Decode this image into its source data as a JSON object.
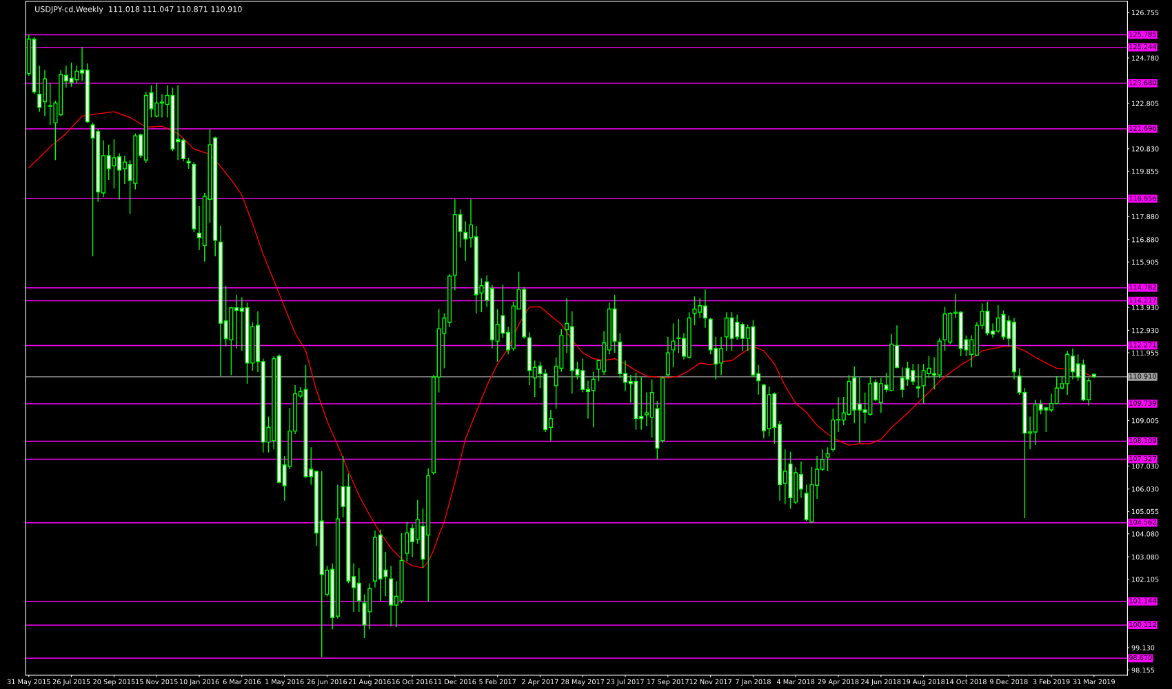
{
  "chart_data": {
    "type": "candlestick",
    "title": "USDJPY-cd,Weekly  111.018 111.047 110.871 110.910",
    "color": "#00ff00",
    "x": [
      "2015-05-31",
      "2015-06-07",
      "2015-06-14",
      "2015-06-21",
      "2015-06-28",
      "2015-07-05",
      "2015-07-12",
      "2015-07-19",
      "2015-07-26",
      "2015-08-02",
      "2015-08-09",
      "2015-08-16",
      "2015-08-23",
      "2015-08-30",
      "2015-09-06",
      "2015-09-13",
      "2015-09-20",
      "2015-09-27",
      "2015-10-04",
      "2015-10-11",
      "2015-10-18",
      "2015-10-25",
      "2015-11-01",
      "2015-11-08",
      "2015-11-15",
      "2015-11-22",
      "2015-11-29",
      "2015-12-06",
      "2015-12-13",
      "2015-12-20",
      "2015-12-27",
      "2016-01-03",
      "2016-01-10",
      "2016-01-17",
      "2016-01-24",
      "2016-01-31",
      "2016-02-07",
      "2016-02-14",
      "2016-02-21",
      "2016-02-28",
      "2016-03-06",
      "2016-03-13",
      "2016-03-20",
      "2016-03-27",
      "2016-04-03",
      "2016-04-10",
      "2016-04-17",
      "2016-04-24",
      "2016-05-01",
      "2016-05-08",
      "2016-05-15",
      "2016-05-22",
      "2016-05-29",
      "2016-06-05",
      "2016-06-12",
      "2016-06-19",
      "2016-06-26",
      "2016-07-03",
      "2016-07-10",
      "2016-07-17",
      "2016-07-24",
      "2016-07-31",
      "2016-08-07",
      "2016-08-14",
      "2016-08-21",
      "2016-08-28",
      "2016-09-04",
      "2016-09-11",
      "2016-09-18",
      "2016-09-25",
      "2016-10-02",
      "2016-10-09",
      "2016-10-16",
      "2016-10-23",
      "2016-10-30",
      "2016-11-06",
      "2016-11-13",
      "2016-11-20",
      "2016-11-27",
      "2016-12-04",
      "2016-12-11",
      "2016-12-18",
      "2016-12-25",
      "2017-01-01",
      "2017-01-08",
      "2017-01-15",
      "2017-01-22",
      "2017-01-29",
      "2017-02-05",
      "2017-02-12",
      "2017-02-19",
      "2017-02-26",
      "2017-03-05",
      "2017-03-12",
      "2017-03-19",
      "2017-03-26",
      "2017-04-02",
      "2017-04-09",
      "2017-04-16",
      "2017-04-23",
      "2017-04-30",
      "2017-05-07",
      "2017-05-14",
      "2017-05-21",
      "2017-05-28",
      "2017-06-04",
      "2017-06-11",
      "2017-06-18",
      "2017-06-25",
      "2017-07-02",
      "2017-07-09",
      "2017-07-16",
      "2017-07-23",
      "2017-07-30",
      "2017-08-06",
      "2017-08-13",
      "2017-08-20",
      "2017-08-27",
      "2017-09-03",
      "2017-09-10",
      "2017-09-17",
      "2017-09-24",
      "2017-10-01",
      "2017-10-08",
      "2017-10-15",
      "2017-10-22",
      "2017-10-29",
      "2017-11-05",
      "2017-11-12",
      "2017-11-19",
      "2017-11-26",
      "2017-12-03",
      "2017-12-10",
      "2017-12-17",
      "2017-12-24",
      "2017-12-31",
      "2018-01-07",
      "2018-01-14",
      "2018-01-21",
      "2018-01-28",
      "2018-02-04",
      "2018-02-11",
      "2018-02-18",
      "2018-02-25",
      "2018-03-04",
      "2018-03-11",
      "2018-03-18",
      "2018-03-25",
      "2018-04-01",
      "2018-04-08",
      "2018-04-15",
      "2018-04-22",
      "2018-04-29",
      "2018-05-06",
      "2018-05-13",
      "2018-05-20",
      "2018-05-27",
      "2018-06-03",
      "2018-06-10",
      "2018-06-17",
      "2018-06-24",
      "2018-07-01",
      "2018-07-08",
      "2018-07-15",
      "2018-07-22",
      "2018-07-29",
      "2018-08-05",
      "2018-08-12",
      "2018-08-19",
      "2018-08-26",
      "2018-09-02",
      "2018-09-09",
      "2018-09-16",
      "2018-09-23",
      "2018-09-30",
      "2018-10-07",
      "2018-10-14",
      "2018-10-21",
      "2018-10-28",
      "2018-11-04",
      "2018-11-11",
      "2018-11-18",
      "2018-11-25",
      "2018-12-02",
      "2018-12-09",
      "2018-12-16",
      "2018-12-23",
      "2018-12-30",
      "2019-01-06",
      "2019-01-13",
      "2019-01-20",
      "2019-01-27",
      "2019-02-03",
      "2019-02-10",
      "2019-02-17",
      "2019-02-24",
      "2019-03-03",
      "2019-03-10",
      "2019-03-17",
      "2019-03-24",
      "2019-03-31"
    ],
    "ohlc": [
      [
        124.1,
        125.8,
        124.0,
        125.6
      ],
      [
        125.59,
        125.68,
        123.2,
        123.3
      ],
      [
        123.2,
        124.44,
        122.44,
        122.63
      ],
      [
        122.88,
        124.25,
        122.25,
        123.87
      ],
      [
        122.7,
        123.68,
        121.87,
        122.68
      ],
      [
        121.96,
        122.92,
        120.34,
        122.82
      ],
      [
        122.31,
        124.25,
        122.25,
        124.06
      ],
      [
        124.02,
        124.44,
        123.49,
        123.78
      ],
      [
        123.9,
        124.58,
        123.53,
        123.72
      ],
      [
        123.83,
        124.44,
        123.68,
        124.2
      ],
      [
        124.25,
        125.25,
        123.78,
        124.12
      ],
      [
        124.25,
        124.54,
        121.96,
        122.0
      ],
      [
        121.87,
        121.96,
        116.15,
        121.3
      ],
      [
        121.58,
        121.68,
        118.53,
        118.95
      ],
      [
        118.91,
        121.2,
        118.72,
        120.53
      ],
      [
        120.53,
        121.01,
        119.48,
        119.96
      ],
      [
        120.09,
        121.24,
        119.1,
        120.44
      ],
      [
        120.48,
        120.63,
        118.63,
        119.9
      ],
      [
        119.96,
        120.53,
        119.3,
        120.25
      ],
      [
        120.15,
        120.34,
        117.99,
        119.45
      ],
      [
        119.33,
        121.49,
        119.06,
        121.39
      ],
      [
        121.43,
        121.49,
        120.44,
        120.53
      ],
      [
        120.34,
        123.3,
        120.21,
        123.15
      ],
      [
        123.26,
        123.59,
        122.19,
        122.57
      ],
      [
        122.25,
        123.68,
        122.19,
        122.82
      ],
      [
        122.82,
        123.2,
        122.19,
        122.86
      ],
      [
        122.76,
        123.59,
        122.19,
        123.15
      ],
      [
        123.15,
        123.49,
        120.72,
        120.82
      ],
      [
        121.24,
        123.59,
        120.34,
        121.14
      ],
      [
        121.2,
        121.3,
        120.28,
        120.4
      ],
      [
        120.28,
        120.44,
        119.96,
        120.21
      ],
      [
        120.15,
        120.25,
        117.19,
        117.35
      ],
      [
        117.16,
        118.34,
        116.43,
        116.97
      ],
      [
        116.62,
        118.91,
        115.92,
        118.76
      ],
      [
        118.63,
        121.68,
        117.61,
        121.01
      ],
      [
        121.3,
        121.35,
        116.15,
        116.85
      ],
      [
        116.77,
        117.48,
        110.94,
        113.24
      ],
      [
        113.34,
        114.87,
        112.23,
        112.57
      ],
      [
        112.52,
        113.95,
        110.99,
        113.91
      ],
      [
        113.91,
        114.48,
        112.14,
        113.8
      ],
      [
        113.89,
        114.37,
        112.04,
        113.76
      ],
      [
        113.91,
        114.14,
        110.61,
        111.51
      ],
      [
        111.51,
        113.28,
        111.18,
        113.09
      ],
      [
        113.15,
        113.76,
        111.12,
        111.57
      ],
      [
        111.57,
        111.7,
        107.62,
        108.07
      ],
      [
        108.07,
        109.18,
        107.62,
        108.71
      ],
      [
        108.13,
        111.81,
        107.75,
        111.7
      ],
      [
        111.81,
        111.89,
        106.28,
        106.32
      ],
      [
        107.08,
        107.46,
        105.52,
        106.17
      ],
      [
        107.02,
        109.56,
        106.89,
        108.55
      ],
      [
        108.55,
        110.55,
        108.42,
        110.17
      ],
      [
        110.07,
        110.46,
        109.98,
        110.27
      ],
      [
        110.36,
        111.43,
        106.51,
        106.57
      ],
      [
        106.89,
        107.84,
        106.22,
        106.57
      ],
      [
        106.8,
        106.8,
        103.55,
        104.12
      ],
      [
        104.64,
        106.8,
        98.72,
        102.31
      ],
      [
        101.45,
        102.69,
        101.36,
        102.5
      ],
      [
        102.54,
        102.79,
        99.92,
        100.44
      ],
      [
        100.5,
        106.22,
        100.4,
        104.73
      ],
      [
        106.13,
        107.46,
        104.79,
        105.27
      ],
      [
        106.13,
        106.7,
        101.93,
        102.03
      ],
      [
        102.22,
        102.79,
        100.69,
        101.74
      ],
      [
        101.93,
        102.6,
        100.69,
        101.17
      ],
      [
        101.07,
        101.45,
        99.55,
        100.12
      ],
      [
        100.69,
        101.93,
        99.93,
        101.7
      ],
      [
        102.03,
        104.22,
        101.74,
        103.93
      ],
      [
        104.03,
        104.26,
        101.17,
        102.12
      ],
      [
        102.5,
        103.3,
        101.36,
        102.22
      ],
      [
        102.12,
        102.69,
        100.06,
        100.98
      ],
      [
        100.98,
        102.03,
        100.03,
        101.36
      ],
      [
        101.17,
        104.12,
        101.07,
        102.92
      ],
      [
        103.23,
        104.6,
        102.88,
        104.12
      ],
      [
        104.32,
        104.51,
        103.07,
        103.74
      ],
      [
        103.84,
        105.56,
        103.65,
        104.7
      ],
      [
        104.41,
        105.18,
        102.6,
        102.98
      ],
      [
        104.03,
        106.93,
        101.13,
        106.61
      ],
      [
        106.74,
        110.99,
        106.66,
        110.9
      ],
      [
        110.9,
        113.86,
        110.23,
        113.0
      ],
      [
        112.8,
        113.67,
        111.28,
        113.47
      ],
      [
        113.28,
        115.38,
        113.09,
        115.29
      ],
      [
        115.33,
        118.63,
        114.67,
        117.96
      ],
      [
        117.96,
        118.19,
        116.53,
        117.23
      ],
      [
        117.19,
        117.67,
        115.95,
        116.91
      ],
      [
        116.96,
        118.63,
        116.53,
        117.52
      ],
      [
        117.0,
        117.48,
        113.67,
        114.48
      ],
      [
        114.56,
        115.19,
        113.72,
        114.87
      ],
      [
        115.04,
        115.33,
        113.95,
        114.24
      ],
      [
        114.75,
        114.91,
        112.14,
        112.52
      ],
      [
        112.46,
        113.86,
        111.57,
        113.19
      ],
      [
        113.57,
        114.91,
        112.6,
        112.81
      ],
      [
        112.84,
        113.09,
        111.89,
        112.08
      ],
      [
        112.14,
        114.18,
        112.04,
        113.99
      ],
      [
        113.86,
        115.48,
        113.86,
        114.71
      ],
      [
        114.71,
        114.81,
        112.58,
        112.65
      ],
      [
        112.61,
        112.84,
        110.55,
        111.18
      ],
      [
        110.86,
        111.62,
        110.04,
        111.32
      ],
      [
        111.38,
        111.57,
        110.42,
        111.05
      ],
      [
        111.05,
        111.24,
        108.51,
        108.61
      ],
      [
        108.71,
        109.47,
        108.13,
        109.09
      ],
      [
        110.52,
        111.76,
        109.52,
        111.37
      ],
      [
        111.28,
        112.99,
        111.13,
        112.71
      ],
      [
        112.96,
        114.33,
        111.95,
        113.23
      ],
      [
        113.09,
        113.76,
        110.17,
        111.18
      ],
      [
        111.24,
        111.57,
        110.8,
        110.99
      ],
      [
        111.18,
        111.7,
        110.23,
        110.36
      ],
      [
        110.36,
        110.74,
        109.09,
        110.27
      ],
      [
        110.32,
        111.13,
        108.71,
        110.8
      ],
      [
        111.24,
        111.66,
        110.71,
        111.62
      ],
      [
        111.13,
        112.9,
        110.99,
        112.39
      ],
      [
        112.08,
        114.14,
        111.89,
        113.86
      ],
      [
        113.86,
        114.48,
        111.95,
        112.46
      ],
      [
        112.42,
        112.81,
        110.86,
        111.05
      ],
      [
        111.05,
        111.62,
        110.29,
        110.67
      ],
      [
        110.71,
        110.99,
        109.79,
        110.61
      ],
      [
        110.71,
        111.09,
        108.61,
        109.09
      ],
      [
        109.18,
        110.9,
        108.61,
        109.09
      ],
      [
        109.26,
        110.23,
        108.76,
        109.34
      ],
      [
        109.15,
        110.8,
        108.26,
        110.23
      ],
      [
        109.52,
        109.85,
        107.31,
        107.81
      ],
      [
        108.13,
        110.9,
        108.04,
        110.86
      ],
      [
        111.0,
        112.65,
        110.94,
        111.95
      ],
      [
        112.08,
        113.23,
        111.32,
        112.46
      ],
      [
        112.6,
        113.42,
        111.95,
        112.58
      ],
      [
        112.58,
        112.81,
        111.66,
        111.81
      ],
      [
        111.76,
        113.72,
        111.7,
        113.47
      ],
      [
        113.67,
        114.41,
        113.15,
        113.86
      ],
      [
        113.72,
        114.33,
        113.47,
        114.0
      ],
      [
        113.99,
        114.71,
        113.04,
        113.47
      ],
      [
        113.42,
        113.47,
        111.89,
        112.08
      ],
      [
        112.14,
        112.65,
        110.8,
        111.47
      ],
      [
        111.51,
        112.65,
        110.99,
        112.14
      ],
      [
        112.65,
        113.72,
        112.04,
        113.47
      ],
      [
        113.47,
        113.72,
        112.04,
        112.58
      ],
      [
        113.28,
        113.61,
        112.52,
        112.65
      ],
      [
        113.19,
        113.28,
        112.04,
        112.58
      ],
      [
        112.58,
        113.19,
        112.04,
        113.04
      ],
      [
        113.09,
        113.38,
        110.9,
        110.99
      ],
      [
        111.05,
        111.43,
        110.13,
        110.74
      ],
      [
        110.55,
        110.61,
        108.23,
        108.57
      ],
      [
        108.65,
        110.48,
        108.32,
        110.13
      ],
      [
        110.17,
        110.23,
        108.0,
        108.71
      ],
      [
        108.84,
        108.99,
        105.52,
        106.22
      ],
      [
        106.28,
        107.75,
        105.37,
        106.8
      ],
      [
        107.12,
        107.65,
        105.17,
        105.65
      ],
      [
        105.46,
        106.99,
        105.37,
        106.74
      ],
      [
        106.66,
        107.23,
        105.65,
        106.03
      ],
      [
        105.84,
        106.22,
        104.64,
        104.7
      ],
      [
        104.6,
        106.99,
        104.57,
        106.22
      ],
      [
        106.19,
        107.46,
        105.6,
        106.89
      ],
      [
        106.89,
        107.75,
        106.8,
        107.31
      ],
      [
        107.42,
        107.84,
        106.8,
        107.56
      ],
      [
        107.75,
        109.52,
        107.65,
        109.03
      ],
      [
        109.03,
        110.04,
        108.51,
        109.05
      ],
      [
        109.03,
        110.04,
        108.8,
        109.34
      ],
      [
        109.28,
        110.99,
        109.22,
        110.71
      ],
      [
        110.86,
        111.37,
        108.89,
        109.47
      ],
      [
        109.72,
        110.9,
        108.04,
        109.47
      ],
      [
        109.47,
        110.23,
        108.89,
        109.37
      ],
      [
        109.28,
        110.94,
        109.22,
        110.61
      ],
      [
        110.67,
        110.8,
        109.85,
        109.91
      ],
      [
        109.79,
        110.86,
        109.34,
        110.61
      ],
      [
        110.55,
        111.09,
        110.23,
        110.36
      ],
      [
        110.32,
        112.77,
        110.29,
        112.33
      ],
      [
        112.27,
        113.15,
        111.28,
        111.32
      ],
      [
        110.86,
        111.32,
        110.0,
        110.36
      ],
      [
        111.28,
        111.57,
        110.52,
        110.8
      ],
      [
        111.18,
        111.47,
        110.55,
        110.71
      ],
      [
        110.48,
        111.47,
        110.0,
        110.42
      ],
      [
        110.52,
        111.47,
        109.75,
        111.18
      ],
      [
        111.05,
        111.81,
        110.86,
        111.28
      ],
      [
        111.05,
        111.76,
        110.36,
        110.99
      ],
      [
        110.99,
        112.6,
        110.86,
        112.46
      ],
      [
        112.52,
        113.95,
        112.04,
        113.64
      ],
      [
        112.42,
        113.72,
        112.33,
        113.67
      ],
      [
        113.67,
        114.52,
        113.47,
        113.72
      ],
      [
        113.72,
        113.76,
        111.81,
        112.14
      ],
      [
        112.52,
        112.71,
        111.81,
        112.08
      ],
      [
        111.89,
        112.71,
        111.32,
        112.52
      ],
      [
        111.85,
        113.28,
        111.81,
        113.15
      ],
      [
        113.15,
        114.1,
        112.99,
        113.76
      ],
      [
        113.76,
        114.18,
        112.71,
        112.81
      ],
      [
        112.9,
        113.23,
        112.61,
        112.77
      ],
      [
        112.9,
        114.04,
        112.81,
        113.47
      ],
      [
        113.61,
        113.8,
        112.52,
        112.65
      ],
      [
        113.34,
        113.57,
        112.23,
        112.58
      ],
      [
        113.28,
        113.47,
        110.8,
        111.13
      ],
      [
        110.94,
        111.28,
        110.13,
        110.23
      ],
      [
        110.23,
        110.42,
        104.76,
        108.46
      ],
      [
        108.46,
        109.18,
        107.75,
        108.51
      ],
      [
        108.51,
        109.91,
        107.94,
        109.72
      ],
      [
        109.72,
        109.91,
        109.28,
        109.47
      ],
      [
        109.56,
        109.6,
        108.51,
        109.47
      ],
      [
        109.47,
        110.17,
        109.37,
        109.75
      ],
      [
        109.75,
        110.94,
        109.72,
        110.42
      ],
      [
        110.42,
        110.94,
        110.36,
        110.61
      ],
      [
        110.61,
        112.04,
        110.13,
        111.89
      ],
      [
        111.81,
        112.14,
        110.8,
        111.13
      ],
      [
        111.47,
        111.89,
        110.74,
        110.9
      ],
      [
        111.43,
        111.66,
        109.85,
        109.91
      ],
      [
        109.91,
        110.86,
        109.66,
        110.74
      ],
      [
        111.018,
        111.047,
        110.871,
        110.91
      ]
    ],
    "series": [
      {
        "type": "line",
        "color": "#ff0000",
        "x": [
          "2015-05-31",
          "2015-06-28",
          "2015-07-19",
          "2015-08-09",
          "2015-08-30",
          "2015-09-20",
          "2015-10-11",
          "2015-11-01",
          "2015-11-22",
          "2015-12-13",
          "2016-01-03",
          "2016-01-24",
          "2016-02-07",
          "2016-02-21",
          "2016-03-06",
          "2016-03-20",
          "2016-04-03",
          "2016-04-17",
          "2016-05-01",
          "2016-05-15",
          "2016-05-29",
          "2016-06-12",
          "2016-06-26",
          "2016-07-10",
          "2016-07-24",
          "2016-08-07",
          "2016-08-21",
          "2016-09-04",
          "2016-09-18",
          "2016-10-02",
          "2016-10-16",
          "2016-10-30",
          "2016-11-06",
          "2016-11-13",
          "2016-11-20",
          "2016-11-27",
          "2016-12-11",
          "2016-12-25",
          "2017-01-08",
          "2017-01-22",
          "2017-02-05",
          "2017-02-19",
          "2017-03-05",
          "2017-03-19",
          "2017-04-02",
          "2017-04-16",
          "2017-04-30",
          "2017-05-14",
          "2017-05-28",
          "2017-06-11",
          "2017-06-25",
          "2017-07-09",
          "2017-07-23",
          "2017-08-06",
          "2017-08-20",
          "2017-09-03",
          "2017-09-17",
          "2017-10-01",
          "2017-10-15",
          "2017-10-29",
          "2017-11-12",
          "2017-11-26",
          "2017-12-10",
          "2017-12-24",
          "2018-01-07",
          "2018-01-21",
          "2018-02-04",
          "2018-02-18",
          "2018-03-04",
          "2018-03-18",
          "2018-04-01",
          "2018-04-15",
          "2018-04-29",
          "2018-05-13",
          "2018-05-27",
          "2018-06-10",
          "2018-06-24",
          "2018-07-08",
          "2018-07-29",
          "2018-08-12",
          "2018-08-26",
          "2018-09-09",
          "2018-09-23",
          "2018-10-07",
          "2018-10-21",
          "2018-11-04",
          "2018-11-18",
          "2018-12-02",
          "2018-12-16",
          "2018-12-30",
          "2019-01-13",
          "2019-01-27",
          "2019-02-10",
          "2019-02-24",
          "2019-03-10",
          "2019-03-24",
          "2019-03-31"
        ],
        "values": [
          120.0,
          120.91,
          121.49,
          122.25,
          122.35,
          122.44,
          122.19,
          121.77,
          121.81,
          121.49,
          120.82,
          120.59,
          120.06,
          119.48,
          118.82,
          117.58,
          116.24,
          115.1,
          113.95,
          112.81,
          112.04,
          110.33,
          108.99,
          107.94,
          106.8,
          105.75,
          104.89,
          104.12,
          103.46,
          102.98,
          102.69,
          102.6,
          102.88,
          103.36,
          104.03,
          104.6,
          106.32,
          108.23,
          109.37,
          110.52,
          111.47,
          112.14,
          113.19,
          113.95,
          113.95,
          113.57,
          113.19,
          112.52,
          111.95,
          111.7,
          111.62,
          111.7,
          111.47,
          111.18,
          110.94,
          110.9,
          110.86,
          110.94,
          111.18,
          111.51,
          111.43,
          111.57,
          111.62,
          111.95,
          112.23,
          112.04,
          111.47,
          110.52,
          109.75,
          109.37,
          108.8,
          108.42,
          108.13,
          107.94,
          108.0,
          108.0,
          108.19,
          108.71,
          109.33,
          109.79,
          110.23,
          110.71,
          111.09,
          111.43,
          111.7,
          112.04,
          112.14,
          112.23,
          112.23,
          112.04,
          111.76,
          111.51,
          111.28,
          111.24,
          111.25,
          110.99,
          110.9
        ]
      }
    ],
    "ref_lines": [
      {
        "axis": "y",
        "value": 125.785,
        "label": "125.785",
        "color": "#ff00ff"
      },
      {
        "axis": "y",
        "value": 125.244,
        "label": "125.244",
        "color": "#ff00ff"
      },
      {
        "axis": "y",
        "value": 123.68,
        "label": "123.680",
        "color": "#ff00ff"
      },
      {
        "axis": "y",
        "value": 121.696,
        "label": "121.696",
        "color": "#ff00ff"
      },
      {
        "axis": "y",
        "value": 118.656,
        "label": "118.656",
        "color": "#ff00ff"
      },
      {
        "axis": "y",
        "value": 114.782,
        "label": "114.782",
        "color": "#ff00ff"
      },
      {
        "axis": "y",
        "value": 114.217,
        "label": "114.217",
        "color": "#ff00ff"
      },
      {
        "axis": "y",
        "value": 112.271,
        "label": "112.271",
        "color": "#ff00ff"
      },
      {
        "axis": "y",
        "value": 110.91,
        "label": "110.910",
        "color": "#a0a0a0"
      },
      {
        "axis": "y",
        "value": 109.739,
        "label": "109.739",
        "color": "#ff00ff"
      },
      {
        "axis": "y",
        "value": 108.109,
        "label": "108.109",
        "color": "#ff00ff"
      },
      {
        "axis": "y",
        "value": 107.327,
        "label": "107.327",
        "color": "#ff00ff"
      },
      {
        "axis": "y",
        "value": 104.562,
        "label": "104.562",
        "color": "#ff00ff"
      },
      {
        "axis": "y",
        "value": 101.144,
        "label": "101.144",
        "color": "#ff00ff"
      },
      {
        "axis": "y",
        "value": 100.112,
        "label": "100.112",
        "color": "#ff00ff"
      },
      {
        "axis": "y",
        "value": 98.67,
        "label": "98.670",
        "color": "#ff00ff"
      }
    ],
    "xlim": [
      "2015-05-27",
      "2019-05-14"
    ],
    "xticks": [
      {
        "value": "2015-05-31",
        "label": "31 May 2015"
      },
      {
        "value": "2015-07-26",
        "label": "26 Jul 2015"
      },
      {
        "value": "2015-09-20",
        "label": "20 Sep 2015"
      },
      {
        "value": "2015-11-15",
        "label": "15 Nov 2015"
      },
      {
        "value": "2016-01-10",
        "label": "10 Jan 2016"
      },
      {
        "value": "2016-03-06",
        "label": "6 Mar 2016"
      },
      {
        "value": "2016-05-01",
        "label": "1 May 2016"
      },
      {
        "value": "2016-06-26",
        "label": "26 Jun 2016"
      },
      {
        "value": "2016-08-21",
        "label": "21 Aug 2016"
      },
      {
        "value": "2016-10-16",
        "label": "16 Oct 2016"
      },
      {
        "value": "2016-12-11",
        "label": "11 Dec 2016"
      },
      {
        "value": "2017-02-05",
        "label": "5 Feb 2017"
      },
      {
        "value": "2017-04-02",
        "label": "2 Apr 2017"
      },
      {
        "value": "2017-05-28",
        "label": "28 May 2017"
      },
      {
        "value": "2017-07-23",
        "label": "23 Jul 2017"
      },
      {
        "value": "2017-09-17",
        "label": "17 Sep 2017"
      },
      {
        "value": "2017-11-12",
        "label": "12 Nov 2017"
      },
      {
        "value": "2018-01-07",
        "label": "7 Jan 2018"
      },
      {
        "value": "2018-03-04",
        "label": "4 Mar 2018"
      },
      {
        "value": "2018-04-29",
        "label": "29 Apr 2018"
      },
      {
        "value": "2018-06-24",
        "label": "24 Jun 2018"
      },
      {
        "value": "2018-08-19",
        "label": "19 Aug 2018"
      },
      {
        "value": "2018-10-14",
        "label": "14 Oct 2018"
      },
      {
        "value": "2018-12-09",
        "label": "9 Dec 2018"
      },
      {
        "value": "2019-02-03",
        "label": "3 Feb 2019"
      },
      {
        "value": "2019-03-31",
        "label": "31 Mar 2019"
      }
    ],
    "ylim": [
      97.93,
      127.24
    ],
    "yticks": [
      {
        "value": 126.755,
        "label": "126.755"
      },
      {
        "value": 124.78,
        "label": "124.780"
      },
      {
        "value": 122.805,
        "label": "122.805"
      },
      {
        "value": 120.83,
        "label": "120.830"
      },
      {
        "value": 119.855,
        "label": "119.855"
      },
      {
        "value": 117.88,
        "label": "117.880"
      },
      {
        "value": 116.88,
        "label": "116.880"
      },
      {
        "value": 115.905,
        "label": "115.905"
      },
      {
        "value": 113.93,
        "label": "113.930"
      },
      {
        "value": 112.93,
        "label": "112.930"
      },
      {
        "value": 111.955,
        "label": "111.955"
      },
      {
        "value": 109.005,
        "label": "109.005"
      },
      {
        "value": 107.03,
        "label": "107.030"
      },
      {
        "value": 106.03,
        "label": "106.030"
      },
      {
        "value": 105.055,
        "label": "105.055"
      },
      {
        "value": 104.08,
        "label": "104.080"
      },
      {
        "value": 103.08,
        "label": "103.080"
      },
      {
        "value": 102.105,
        "label": "102.105"
      },
      {
        "value": 99.13,
        "label": "99.130"
      },
      {
        "value": 98.155,
        "label": "98.155"
      }
    ]
  }
}
